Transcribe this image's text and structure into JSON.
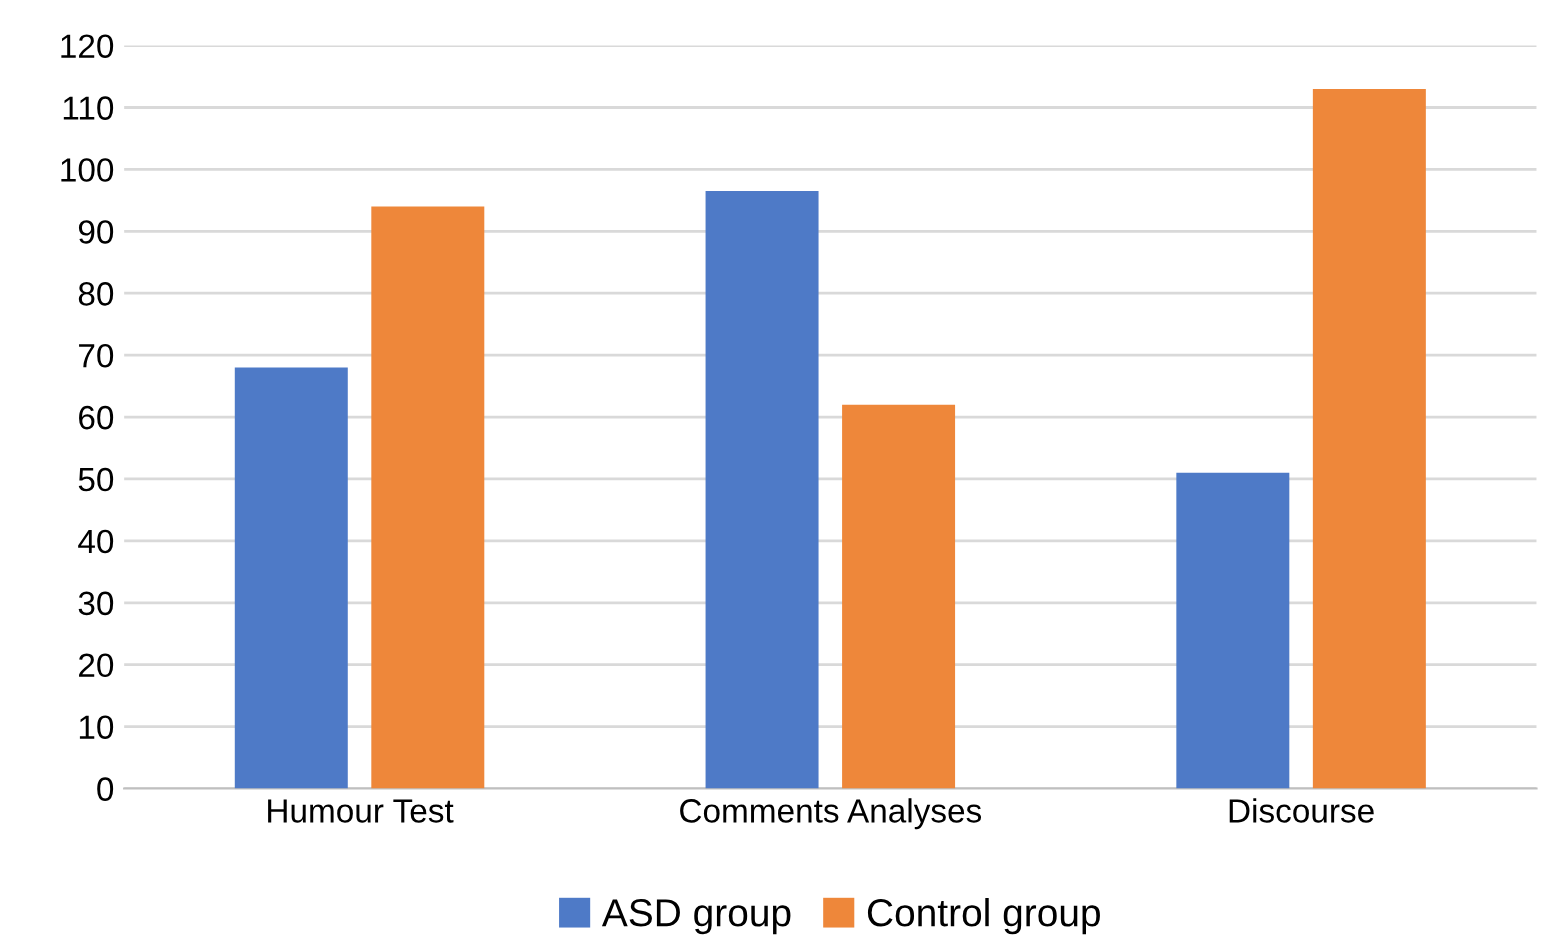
{
  "chart_data": {
    "type": "bar",
    "categories": [
      "Humour Test",
      "Comments Analyses",
      "Discourse"
    ],
    "series": [
      {
        "name": "ASD group",
        "color": "#4e7ac7",
        "values": [
          68,
          96.5,
          51
        ]
      },
      {
        "name": "Control group",
        "color": "#ee873a",
        "values": [
          94,
          62,
          113
        ]
      }
    ],
    "ylim": [
      0,
      120
    ],
    "yticks": [
      0,
      10,
      20,
      30,
      40,
      50,
      60,
      70,
      80,
      90,
      100,
      110,
      120
    ],
    "grid": "y",
    "legend": "bottom"
  }
}
